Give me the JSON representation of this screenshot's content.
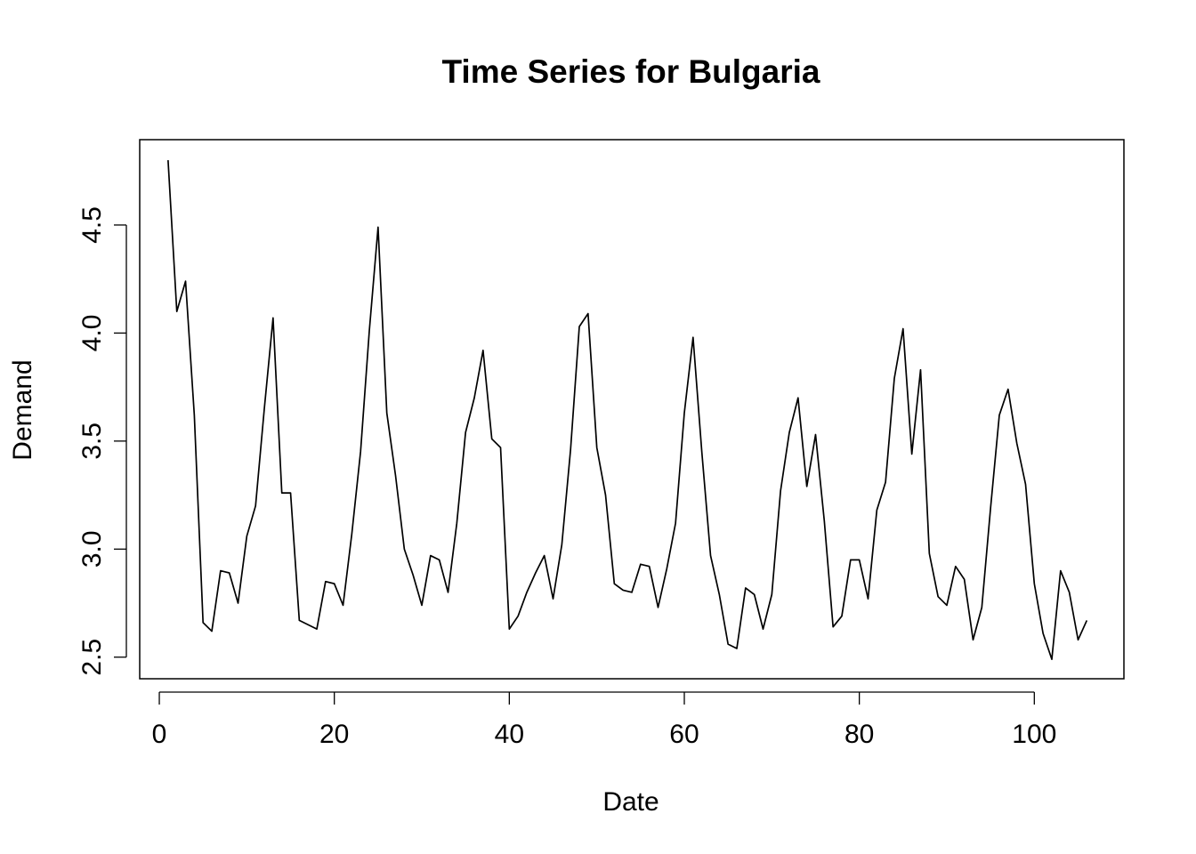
{
  "chart_data": {
    "type": "line",
    "title": "Time Series for Bulgaria",
    "xlabel": "Date",
    "ylabel": "Demand",
    "xlim": [
      -2.24,
      110.24
    ],
    "ylim": [
      2.4,
      4.895
    ],
    "x_ticks": [
      0,
      20,
      40,
      60,
      80,
      100
    ],
    "x_tick_labels": [
      "0",
      "20",
      "40",
      "60",
      "80",
      "100"
    ],
    "y_ticks": [
      2.5,
      3.0,
      3.5,
      4.0,
      4.5
    ],
    "y_tick_labels": [
      "2.5",
      "3.0",
      "3.5",
      "4.0",
      "4.5"
    ],
    "grid": false,
    "legend": "none",
    "line_color": "#000000",
    "series": [
      {
        "x": [
          1,
          2,
          3,
          4,
          5,
          6,
          7,
          8,
          9,
          10,
          11,
          12,
          13,
          14,
          15,
          16,
          17,
          18,
          19,
          20,
          21,
          22,
          23,
          24,
          25,
          26,
          27,
          28,
          29,
          30,
          31,
          32,
          33,
          34,
          35,
          36,
          37,
          38,
          39,
          40,
          41,
          42,
          43,
          44,
          45,
          46,
          47,
          48,
          49,
          50,
          51,
          52,
          53,
          54,
          55,
          56,
          57,
          58,
          59,
          60,
          61,
          62,
          63,
          64,
          65,
          66,
          67,
          68,
          69,
          70,
          71,
          72,
          73,
          74,
          75,
          76,
          77,
          78,
          79,
          80,
          81,
          82,
          83,
          84,
          85,
          86,
          87,
          88,
          89,
          90,
          91,
          92,
          93,
          94,
          95,
          96,
          97,
          98,
          99,
          100,
          101,
          102,
          103,
          104,
          105,
          106
        ],
        "values": [
          4.8,
          4.1,
          4.24,
          3.62,
          2.66,
          2.62,
          2.9,
          2.89,
          2.75,
          3.06,
          3.2,
          3.65,
          4.07,
          3.26,
          3.26,
          2.67,
          2.65,
          2.63,
          2.85,
          2.84,
          2.74,
          3.07,
          3.45,
          4.01,
          4.49,
          3.63,
          3.34,
          3.0,
          2.88,
          2.74,
          2.97,
          2.95,
          2.8,
          3.12,
          3.54,
          3.7,
          3.92,
          3.51,
          3.47,
          2.63,
          2.69,
          2.8,
          2.89,
          2.97,
          2.77,
          3.02,
          3.46,
          4.03,
          4.09,
          3.47,
          3.25,
          2.84,
          2.81,
          2.8,
          2.93,
          2.92,
          2.73,
          2.91,
          3.12,
          3.63,
          3.98,
          3.45,
          2.97,
          2.79,
          2.56,
          2.54,
          2.82,
          2.79,
          2.63,
          2.79,
          3.27,
          3.54,
          3.7,
          3.29,
          3.53,
          3.13,
          2.64,
          2.69,
          2.95,
          2.95,
          2.77,
          3.18,
          3.31,
          3.79,
          4.02,
          3.44,
          3.83,
          2.98,
          2.78,
          2.74,
          2.92,
          2.86,
          2.58,
          2.73,
          3.19,
          3.62,
          3.74,
          3.49,
          3.3,
          2.84,
          2.61,
          2.49,
          2.9,
          2.8,
          2.58,
          2.67
        ]
      }
    ]
  }
}
